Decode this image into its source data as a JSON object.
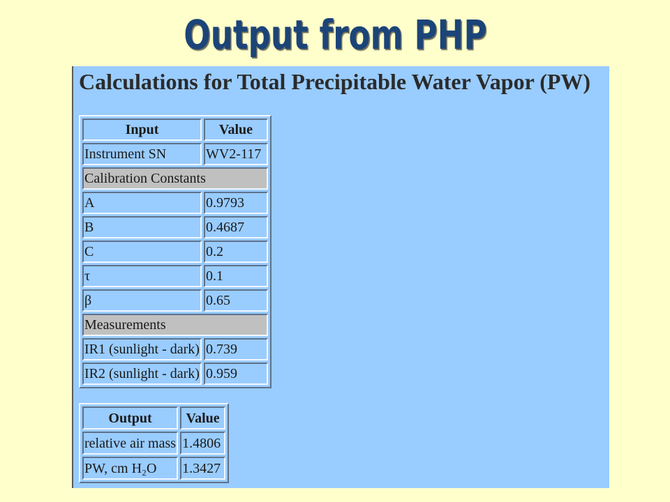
{
  "slide": {
    "title": "Output from PHP"
  },
  "page": {
    "heading": "Calculations for Total Precipitable Water Vapor (PW)",
    "input_table": {
      "headers": [
        "Input",
        "Value"
      ],
      "rows": [
        {
          "label": "Instrument SN",
          "value": "WV2-117"
        },
        {
          "label": "Calibration Constants",
          "section": true
        },
        {
          "label": "A",
          "value": "0.9793"
        },
        {
          "label": "B",
          "value": "0.4687"
        },
        {
          "label": "C",
          "value": "0.2"
        },
        {
          "label": "τ",
          "value": "0.1"
        },
        {
          "label": "β",
          "value": "0.65"
        },
        {
          "label": "Measurements",
          "section": true
        },
        {
          "label": "IR1 (sunlight - dark)",
          "value": "0.739"
        },
        {
          "label": "IR2 (sunlight - dark)",
          "value": "0.959"
        }
      ]
    },
    "output_table": {
      "headers": [
        "Output",
        "Value"
      ],
      "rows": [
        {
          "label": "relative air mass",
          "value": "1.4806"
        },
        {
          "label": "PW, cm H₂O",
          "value": "1.3427"
        }
      ]
    }
  },
  "colors": {
    "slide_background": "#FFFFCC",
    "title_text": "#1B4478",
    "page_background": "#99CCFF",
    "section_row": "#C0C0C0"
  }
}
